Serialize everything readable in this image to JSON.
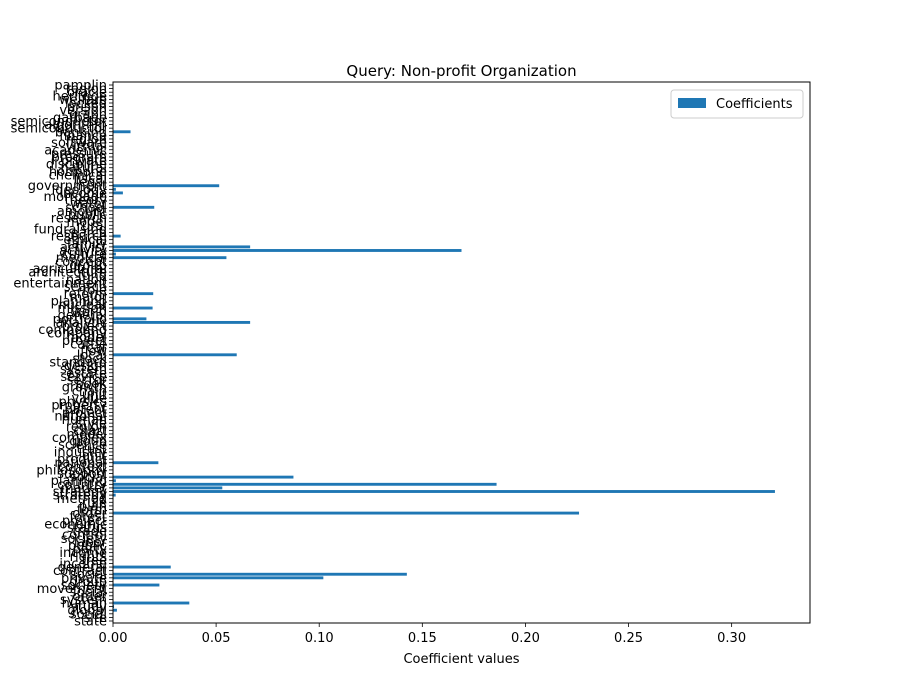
{
  "chart_data": {
    "type": "bar",
    "orientation": "horizontal",
    "title": "Query: Non-profit Organization",
    "xlabel": "Coefficient values",
    "ylabel": "",
    "xlim": [
      0,
      0.338
    ],
    "xticks": [
      "0.00",
      "0.05",
      "0.10",
      "0.15",
      "0.20",
      "0.25",
      "0.30"
    ],
    "legend": {
      "placement": "top-right",
      "entries": [
        "Coefficients"
      ]
    },
    "grid": false,
    "bar_color": "#1f77b4",
    "series": [
      {
        "name": "Coefficients"
      }
    ],
    "categories": [
      "state",
      "site",
      "social",
      "global",
      "study",
      "human",
      "system",
      "order",
      "social",
      "movement",
      "society",
      "group",
      "private",
      "social",
      "contract",
      "general",
      "income",
      "free",
      "rights",
      "income",
      "party",
      "public",
      "labor",
      "society",
      "control",
      "trade",
      "status",
      "economic",
      "project",
      "forest",
      "order",
      "form",
      "plan",
      "rule",
      "method",
      "strategy",
      "strategy",
      "market",
      "country",
      "planning",
      "social",
      "support",
      "philosophy",
      "context",
      "national",
      "product",
      "unit",
      "industry",
      "trust",
      "science",
      "group",
      "complex",
      "model",
      "chart",
      "region",
      "style",
      "human",
      "national",
      "project",
      "patent",
      "property",
      "physics",
      "value",
      "unit",
      "chain",
      "growth",
      "book",
      "sector",
      "service",
      "estate",
      "system",
      "design",
      "standard",
      "stock",
      "local",
      "flow",
      "car",
      "cattle",
      "project",
      "model",
      "company",
      "compound",
      "project",
      "analytic",
      "portfolio",
      "general",
      "world",
      "mission",
      "nuclear",
      "planning",
      "major",
      "reform",
      "role",
      "search",
      "entertainment",
      "nation",
      "fund",
      "architecture",
      "agricultural",
      "group",
      "concept",
      "medical",
      "culture",
      "activity",
      "activist",
      "family",
      "ethical",
      "resource",
      "search",
      "fundraising",
      "rural",
      "model",
      "research",
      "public",
      "amount",
      "school",
      "water",
      "theory",
      "mortgage",
      "income",
      "ideology",
      "government",
      "legal",
      "fiscal",
      "chemical",
      "hormone",
      "natural",
      "discipline",
      "private",
      "program",
      "pressure",
      "academic",
      "virtual",
      "software",
      "region",
      "finance",
      "banking",
      "semiconductor",
      "algorithm",
      "semiconductor",
      "garbage",
      "graph",
      "version",
      "prison",
      "locked",
      "welfare",
      "heritage",
      "oracle",
      "region",
      "pamplin"
    ],
    "values": [
      0,
      0,
      0,
      0.0019,
      0.0005,
      0.037,
      0,
      0,
      0,
      0,
      0.0225,
      0,
      0.102,
      0.1425,
      0,
      0.028,
      0,
      0,
      0,
      0,
      0,
      0,
      0,
      0,
      0,
      0,
      0,
      0,
      0,
      0,
      0.226,
      0,
      0,
      0,
      0,
      0.0013,
      0.321,
      0.053,
      0.186,
      0.0014,
      0.0875,
      0,
      0,
      0,
      0.022,
      0,
      0,
      0,
      0,
      0,
      0,
      0,
      0,
      0,
      0,
      0,
      0,
      0,
      0,
      0,
      0,
      0,
      0,
      0,
      0,
      0,
      0,
      0,
      0,
      0,
      0,
      0,
      0,
      0,
      0.06,
      0,
      0,
      0,
      0,
      0,
      0,
      0,
      0,
      0.0665,
      0.0162,
      0,
      0,
      0.0192,
      0,
      0,
      0,
      0.0195,
      0,
      0,
      0,
      0,
      0,
      0,
      0,
      0,
      0,
      0.055,
      0.0014,
      0.169,
      0.0665,
      0,
      0,
      0.0037,
      0,
      0,
      0,
      0,
      0,
      0,
      0,
      0.02,
      0,
      0,
      0,
      0.0048,
      0.0014,
      0.0515,
      0,
      0,
      0,
      0,
      0,
      0,
      0,
      0,
      0,
      0,
      0,
      0,
      0,
      0,
      0.0085,
      0,
      0,
      0,
      0,
      0,
      0,
      0,
      0,
      0,
      0,
      0,
      0,
      0
    ]
  }
}
